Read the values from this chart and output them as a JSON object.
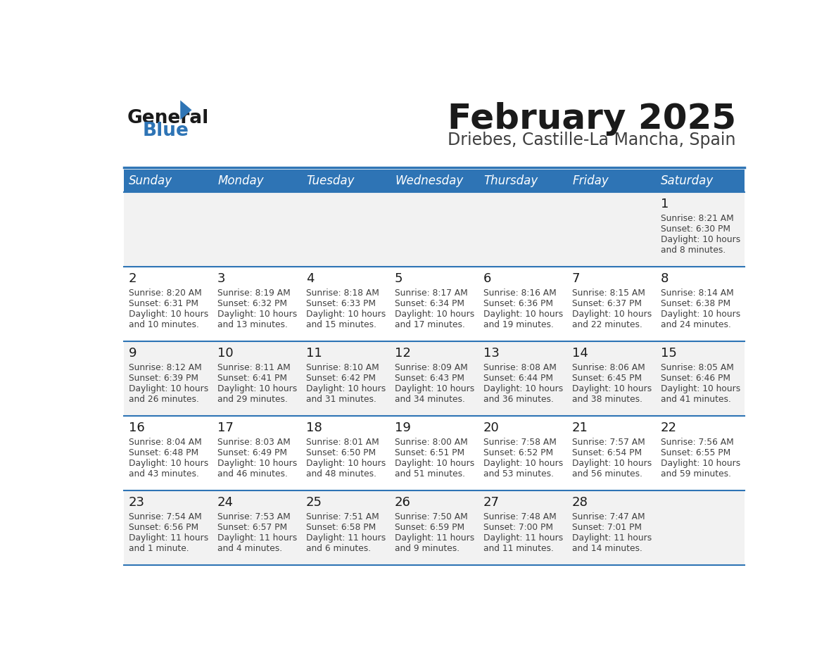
{
  "title": "February 2025",
  "subtitle": "Driebes, Castille-La Mancha, Spain",
  "header_bg": "#2E74B5",
  "header_text": "#FFFFFF",
  "row_bg_even": "#FFFFFF",
  "row_bg_odd": "#F2F2F2",
  "separator_color": "#2E74B5",
  "day_headers": [
    "Sunday",
    "Monday",
    "Tuesday",
    "Wednesday",
    "Thursday",
    "Friday",
    "Saturday"
  ],
  "days": [
    {
      "day": 1,
      "col": 6,
      "row": 0,
      "sunrise": "8:21 AM",
      "sunset": "6:30 PM",
      "daylight": "10 hours and 8 minutes."
    },
    {
      "day": 2,
      "col": 0,
      "row": 1,
      "sunrise": "8:20 AM",
      "sunset": "6:31 PM",
      "daylight": "10 hours and 10 minutes."
    },
    {
      "day": 3,
      "col": 1,
      "row": 1,
      "sunrise": "8:19 AM",
      "sunset": "6:32 PM",
      "daylight": "10 hours and 13 minutes."
    },
    {
      "day": 4,
      "col": 2,
      "row": 1,
      "sunrise": "8:18 AM",
      "sunset": "6:33 PM",
      "daylight": "10 hours and 15 minutes."
    },
    {
      "day": 5,
      "col": 3,
      "row": 1,
      "sunrise": "8:17 AM",
      "sunset": "6:34 PM",
      "daylight": "10 hours and 17 minutes."
    },
    {
      "day": 6,
      "col": 4,
      "row": 1,
      "sunrise": "8:16 AM",
      "sunset": "6:36 PM",
      "daylight": "10 hours and 19 minutes."
    },
    {
      "day": 7,
      "col": 5,
      "row": 1,
      "sunrise": "8:15 AM",
      "sunset": "6:37 PM",
      "daylight": "10 hours and 22 minutes."
    },
    {
      "day": 8,
      "col": 6,
      "row": 1,
      "sunrise": "8:14 AM",
      "sunset": "6:38 PM",
      "daylight": "10 hours and 24 minutes."
    },
    {
      "day": 9,
      "col": 0,
      "row": 2,
      "sunrise": "8:12 AM",
      "sunset": "6:39 PM",
      "daylight": "10 hours and 26 minutes."
    },
    {
      "day": 10,
      "col": 1,
      "row": 2,
      "sunrise": "8:11 AM",
      "sunset": "6:41 PM",
      "daylight": "10 hours and 29 minutes."
    },
    {
      "day": 11,
      "col": 2,
      "row": 2,
      "sunrise": "8:10 AM",
      "sunset": "6:42 PM",
      "daylight": "10 hours and 31 minutes."
    },
    {
      "day": 12,
      "col": 3,
      "row": 2,
      "sunrise": "8:09 AM",
      "sunset": "6:43 PM",
      "daylight": "10 hours and 34 minutes."
    },
    {
      "day": 13,
      "col": 4,
      "row": 2,
      "sunrise": "8:08 AM",
      "sunset": "6:44 PM",
      "daylight": "10 hours and 36 minutes."
    },
    {
      "day": 14,
      "col": 5,
      "row": 2,
      "sunrise": "8:06 AM",
      "sunset": "6:45 PM",
      "daylight": "10 hours and 38 minutes."
    },
    {
      "day": 15,
      "col": 6,
      "row": 2,
      "sunrise": "8:05 AM",
      "sunset": "6:46 PM",
      "daylight": "10 hours and 41 minutes."
    },
    {
      "day": 16,
      "col": 0,
      "row": 3,
      "sunrise": "8:04 AM",
      "sunset": "6:48 PM",
      "daylight": "10 hours and 43 minutes."
    },
    {
      "day": 17,
      "col": 1,
      "row": 3,
      "sunrise": "8:03 AM",
      "sunset": "6:49 PM",
      "daylight": "10 hours and 46 minutes."
    },
    {
      "day": 18,
      "col": 2,
      "row": 3,
      "sunrise": "8:01 AM",
      "sunset": "6:50 PM",
      "daylight": "10 hours and 48 minutes."
    },
    {
      "day": 19,
      "col": 3,
      "row": 3,
      "sunrise": "8:00 AM",
      "sunset": "6:51 PM",
      "daylight": "10 hours and 51 minutes."
    },
    {
      "day": 20,
      "col": 4,
      "row": 3,
      "sunrise": "7:58 AM",
      "sunset": "6:52 PM",
      "daylight": "10 hours and 53 minutes."
    },
    {
      "day": 21,
      "col": 5,
      "row": 3,
      "sunrise": "7:57 AM",
      "sunset": "6:54 PM",
      "daylight": "10 hours and 56 minutes."
    },
    {
      "day": 22,
      "col": 6,
      "row": 3,
      "sunrise": "7:56 AM",
      "sunset": "6:55 PM",
      "daylight": "10 hours and 59 minutes."
    },
    {
      "day": 23,
      "col": 0,
      "row": 4,
      "sunrise": "7:54 AM",
      "sunset": "6:56 PM",
      "daylight": "11 hours and 1 minute."
    },
    {
      "day": 24,
      "col": 1,
      "row": 4,
      "sunrise": "7:53 AM",
      "sunset": "6:57 PM",
      "daylight": "11 hours and 4 minutes."
    },
    {
      "day": 25,
      "col": 2,
      "row": 4,
      "sunrise": "7:51 AM",
      "sunset": "6:58 PM",
      "daylight": "11 hours and 6 minutes."
    },
    {
      "day": 26,
      "col": 3,
      "row": 4,
      "sunrise": "7:50 AM",
      "sunset": "6:59 PM",
      "daylight": "11 hours and 9 minutes."
    },
    {
      "day": 27,
      "col": 4,
      "row": 4,
      "sunrise": "7:48 AM",
      "sunset": "7:00 PM",
      "daylight": "11 hours and 11 minutes."
    },
    {
      "day": 28,
      "col": 5,
      "row": 4,
      "sunrise": "7:47 AM",
      "sunset": "7:01 PM",
      "daylight": "11 hours and 14 minutes."
    }
  ],
  "num_rows": 5,
  "num_cols": 7,
  "logo_color_general": "#1a1a1a",
  "logo_color_blue": "#2E74B5",
  "title_color": "#1a1a1a",
  "subtitle_color": "#404040",
  "cell_text_color": "#404040",
  "day_num_color": "#1a1a1a"
}
